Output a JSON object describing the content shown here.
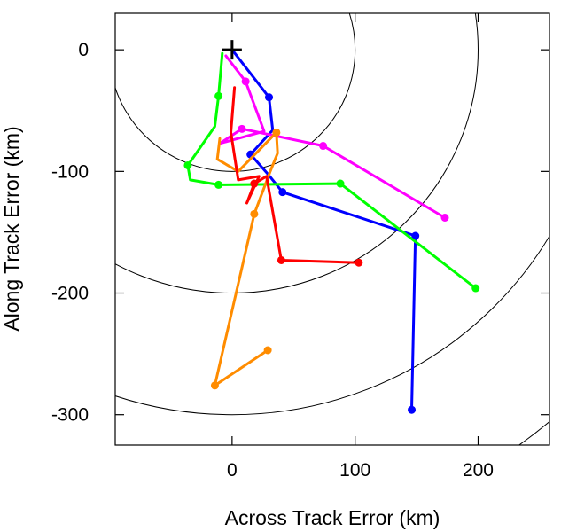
{
  "chart_data": {
    "type": "line",
    "title": "",
    "xlabel": "Across Track Error (km)",
    "ylabel": "Along Track Error (km)",
    "xlim": [
      -95,
      258
    ],
    "ylim": [
      -325,
      30
    ],
    "x_ticks": [
      0,
      100,
      200
    ],
    "y_ticks": [
      0,
      -100,
      -200,
      -300
    ],
    "x_tick_labels": [
      "0",
      "100",
      "200"
    ],
    "y_tick_labels": [
      "0",
      "-100",
      "-200",
      "-300"
    ],
    "grid": false,
    "legend": "none",
    "origin_marker": "plus",
    "range_rings_km": [
      100,
      200,
      300,
      400
    ],
    "series": [
      {
        "color": "#0000ff",
        "points": [
          [
            0,
            0
          ],
          [
            30,
            -39
          ],
          [
            33,
            -66
          ],
          [
            15,
            -86
          ],
          [
            29,
            -102
          ],
          [
            41,
            -117
          ],
          [
            149,
            -153
          ],
          [
            146,
            -296
          ]
        ],
        "markers": [
          false,
          true,
          false,
          true,
          false,
          true,
          true,
          true
        ]
      },
      {
        "color": "#ff00ff",
        "points": [
          [
            -5,
            -5
          ],
          [
            11,
            -26
          ],
          [
            26,
            -67
          ],
          [
            -10,
            -77
          ],
          [
            8,
            -65
          ],
          [
            74,
            -79
          ],
          [
            173,
            -138
          ]
        ],
        "markers": [
          false,
          true,
          false,
          false,
          true,
          true,
          true
        ]
      },
      {
        "color": "#00ff00",
        "points": [
          [
            -8,
            -3
          ],
          [
            -11,
            -38
          ],
          [
            -14,
            -63
          ],
          [
            -36,
            -95
          ],
          [
            -34,
            -107
          ],
          [
            -11,
            -111
          ],
          [
            88,
            -110
          ],
          [
            198,
            -196
          ]
        ],
        "markers": [
          false,
          true,
          false,
          true,
          false,
          true,
          true,
          true
        ]
      },
      {
        "color": "#ff8c00",
        "points": [
          [
            -10,
            -73
          ],
          [
            -12,
            -90
          ],
          [
            5,
            -100
          ],
          [
            36,
            -68
          ],
          [
            37,
            -85
          ],
          [
            31,
            -100
          ],
          [
            18,
            -135
          ],
          [
            -14,
            -276
          ],
          [
            29,
            -247
          ]
        ],
        "markers": [
          false,
          false,
          false,
          true,
          false,
          false,
          true,
          true,
          true
        ]
      },
      {
        "color": "#ff0000",
        "points": [
          [
            2,
            -31
          ],
          [
            -1,
            -68
          ],
          [
            5,
            -107
          ],
          [
            22,
            -104
          ],
          [
            12,
            -126
          ],
          [
            18,
            -110
          ],
          [
            28,
            -104
          ],
          [
            40,
            -173
          ],
          [
            103,
            -175
          ]
        ],
        "markers": [
          false,
          false,
          false,
          false,
          false,
          true,
          false,
          true,
          true
        ]
      }
    ]
  }
}
